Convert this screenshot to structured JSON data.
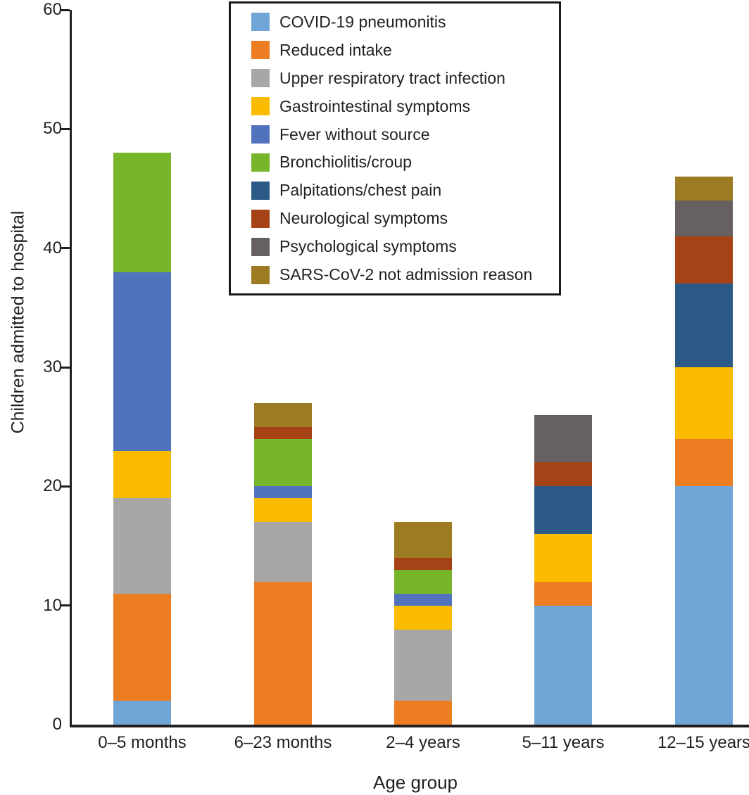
{
  "figure": {
    "y_axis_title": "Children admitted to hospital",
    "x_axis_title": "Age group"
  },
  "chart_data": {
    "type": "bar",
    "stacked": true,
    "title": "",
    "xlabel": "Age group",
    "ylabel": "Children admitted to hospital",
    "categories": [
      "0–5 months",
      "6–23 months",
      "2–4 years",
      "5–11 years",
      "12–15 years"
    ],
    "series": [
      {
        "name": "COVID-19 pneumonitis",
        "color": "#70A5D8",
        "values": [
          2,
          0,
          0,
          10,
          20
        ]
      },
      {
        "name": "Reduced intake",
        "color": "#EC7D21",
        "values": [
          9,
          12,
          2,
          2,
          4
        ]
      },
      {
        "name": "Upper respiratory tract infection",
        "color": "#A9A7A5",
        "values": [
          8,
          5,
          6,
          0,
          0
        ]
      },
      {
        "name": "Gastrointestinal symptoms",
        "color": "#FABB00",
        "values": [
          4,
          2,
          2,
          4,
          6
        ]
      },
      {
        "name": "Fever without source",
        "color": "#5173BD",
        "values": [
          15,
          1,
          1,
          0,
          0
        ]
      },
      {
        "name": "Bronchiolitis/croup",
        "color": "#77B52A",
        "values": [
          10,
          4,
          2,
          0,
          0
        ]
      },
      {
        "name": "Palpitations/chest pain",
        "color": "#2C5A86",
        "values": [
          0,
          0,
          0,
          4,
          7
        ]
      },
      {
        "name": "Neurological symptoms",
        "color": "#A54317",
        "values": [
          0,
          1,
          1,
          2,
          4
        ]
      },
      {
        "name": "Psychological symptoms",
        "color": "#666160",
        "values": [
          0,
          0,
          0,
          4,
          3
        ]
      },
      {
        "name": "SARS-CoV-2 not admission reason",
        "color": "#9D7B22",
        "values": [
          0,
          2,
          3,
          0,
          2
        ]
      }
    ],
    "stack_totals": [
      48,
      27,
      17,
      26,
      46
    ],
    "y_ticks": [
      0,
      10,
      20,
      30,
      40,
      50,
      60
    ],
    "ylim": [
      0,
      60
    ],
    "grid": false,
    "legend_position": "top-center-inside",
    "stacking_order": "legend order bottom-to-top"
  },
  "layout_colors": {
    "axis": "#231F20",
    "text": "#231F20",
    "legend_border": "#1A1A1A",
    "background": "#FFFFFF"
  }
}
